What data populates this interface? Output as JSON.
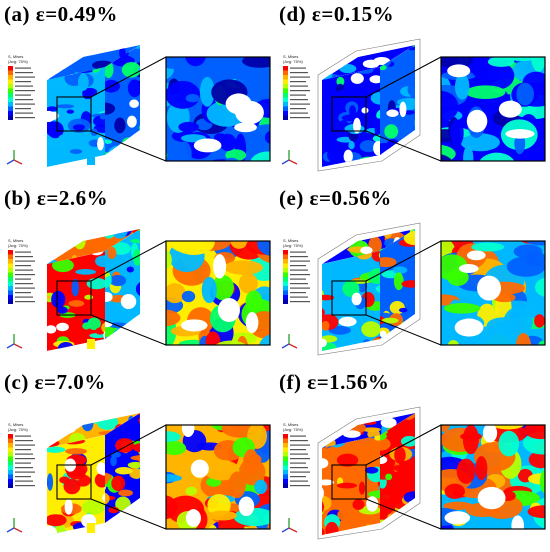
{
  "panels": [
    {
      "id": "a",
      "label": "(a) ε=0.49%",
      "stress_level": "low"
    },
    {
      "id": "d",
      "label": "(d) ε=0.15%",
      "stress_level": "low"
    },
    {
      "id": "b",
      "label": "(b) ε=2.6%",
      "stress_level": "medium"
    },
    {
      "id": "e",
      "label": "(e) ε=0.56%",
      "stress_level": "medium"
    },
    {
      "id": "c",
      "label": "(c) ε=7.0%",
      "stress_level": "high"
    },
    {
      "id": "f",
      "label": "(f) ε=1.56%",
      "stress_level": "high"
    }
  ],
  "legend": {
    "title_line1": "S, Mises",
    "title_line2": "(Avg: 75%)"
  },
  "colors": {
    "contour": [
      "#ff0000",
      "#ff6a00",
      "#ffb400",
      "#ffee00",
      "#b8ff00",
      "#38ff00",
      "#00ff6a",
      "#00ffd0",
      "#00b8ff",
      "#0060ff",
      "#0000ff",
      "#0000aa"
    ]
  }
}
